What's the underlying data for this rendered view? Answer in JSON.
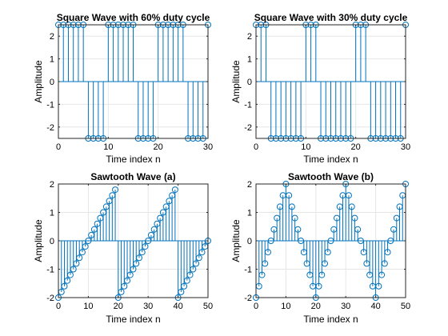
{
  "chart_data": [
    {
      "type": "stem",
      "title": "Square Wave with 60% duty cycle",
      "xlabel": "Time index n",
      "ylabel": "Amplitude",
      "xlim": [
        0,
        30
      ],
      "ylim": [
        -2.5,
        2.5
      ],
      "xticks": [
        0,
        10,
        20,
        30
      ],
      "yticks": [
        -2,
        -1,
        0,
        1,
        2
      ],
      "grid": true,
      "x": [
        0,
        1,
        2,
        3,
        4,
        5,
        6,
        7,
        8,
        9,
        10,
        11,
        12,
        13,
        14,
        15,
        16,
        17,
        18,
        19,
        20,
        21,
        22,
        23,
        24,
        25,
        26,
        27,
        28,
        29,
        30
      ],
      "y": [
        2.5,
        2.5,
        2.5,
        2.5,
        2.5,
        2.5,
        -2.5,
        -2.5,
        -2.5,
        -2.5,
        2.5,
        2.5,
        2.5,
        2.5,
        2.5,
        2.5,
        -2.5,
        -2.5,
        -2.5,
        -2.5,
        2.5,
        2.5,
        2.5,
        2.5,
        2.5,
        2.5,
        -2.5,
        -2.5,
        -2.5,
        -2.5,
        2.5
      ]
    },
    {
      "type": "stem",
      "title": "Square Wave with 30% duty cycle",
      "xlabel": "Time index n",
      "ylabel": "Amplitude",
      "xlim": [
        0,
        30
      ],
      "ylim": [
        -2.5,
        2.5
      ],
      "xticks": [
        0,
        10,
        20,
        30
      ],
      "yticks": [
        -2,
        -1,
        0,
        1,
        2
      ],
      "grid": true,
      "x": [
        0,
        1,
        2,
        3,
        4,
        5,
        6,
        7,
        8,
        9,
        10,
        11,
        12,
        13,
        14,
        15,
        16,
        17,
        18,
        19,
        20,
        21,
        22,
        23,
        24,
        25,
        26,
        27,
        28,
        29,
        30
      ],
      "y": [
        2.5,
        2.5,
        2.5,
        -2.5,
        -2.5,
        -2.5,
        -2.5,
        -2.5,
        -2.5,
        -2.5,
        2.5,
        2.5,
        2.5,
        -2.5,
        -2.5,
        -2.5,
        -2.5,
        -2.5,
        -2.5,
        -2.5,
        2.5,
        2.5,
        2.5,
        -2.5,
        -2.5,
        -2.5,
        -2.5,
        -2.5,
        -2.5,
        -2.5,
        2.5
      ]
    },
    {
      "type": "stem",
      "title": "Sawtooth Wave (a)",
      "xlabel": "Time index n",
      "ylabel": "Amplitude",
      "xlim": [
        0,
        50
      ],
      "ylim": [
        -2,
        2
      ],
      "xticks": [
        0,
        10,
        20,
        30,
        40,
        50
      ],
      "yticks": [
        -2,
        -1,
        0,
        1,
        2
      ],
      "grid": true,
      "x": [
        0,
        1,
        2,
        3,
        4,
        5,
        6,
        7,
        8,
        9,
        10,
        11,
        12,
        13,
        14,
        15,
        16,
        17,
        18,
        19,
        20,
        21,
        22,
        23,
        24,
        25,
        26,
        27,
        28,
        29,
        30,
        31,
        32,
        33,
        34,
        35,
        36,
        37,
        38,
        39,
        40,
        41,
        42,
        43,
        44,
        45,
        46,
        47,
        48,
        49,
        50
      ],
      "y": [
        -2,
        -1.8,
        -1.6,
        -1.4,
        -1.2,
        -1,
        -0.8,
        -0.6,
        -0.4,
        -0.2,
        0,
        0.2,
        0.4,
        0.6,
        0.8,
        1,
        1.2,
        1.4,
        1.6,
        1.8,
        -2,
        -1.8,
        -1.6,
        -1.4,
        -1.2,
        -1,
        -0.8,
        -0.6,
        -0.4,
        -0.2,
        0,
        0.2,
        0.4,
        0.6,
        0.8,
        1,
        1.2,
        1.4,
        1.6,
        1.8,
        -2,
        -1.8,
        -1.6,
        -1.4,
        -1.2,
        -1,
        -0.8,
        -0.6,
        -0.4,
        -0.2,
        0
      ]
    },
    {
      "type": "stem",
      "title": "Sawtooth Wave (b)",
      "xlabel": "Time index n",
      "ylabel": "Amplitude",
      "xlim": [
        0,
        50
      ],
      "ylim": [
        -2,
        2
      ],
      "xticks": [
        0,
        10,
        20,
        30,
        40,
        50
      ],
      "yticks": [
        -2,
        -1,
        0,
        1,
        2
      ],
      "grid": true,
      "x": [
        0,
        1,
        2,
        3,
        4,
        5,
        6,
        7,
        8,
        9,
        10,
        11,
        12,
        13,
        14,
        15,
        16,
        17,
        18,
        19,
        20,
        21,
        22,
        23,
        24,
        25,
        26,
        27,
        28,
        29,
        30,
        31,
        32,
        33,
        34,
        35,
        36,
        37,
        38,
        39,
        40,
        41,
        42,
        43,
        44,
        45,
        46,
        47,
        48,
        49,
        50
      ],
      "y": [
        -2,
        -1.6,
        -1.2,
        -0.8,
        -0.4,
        0,
        0.4,
        0.8,
        1.2,
        1.6,
        2,
        1.6,
        1.2,
        0.8,
        0.4,
        0,
        -0.4,
        -0.8,
        -1.2,
        -1.6,
        -2,
        -1.6,
        -1.2,
        -0.8,
        -0.4,
        0,
        0.4,
        0.8,
        1.2,
        1.6,
        2,
        1.6,
        1.2,
        0.8,
        0.4,
        0,
        -0.4,
        -0.8,
        -1.2,
        -1.6,
        -2,
        -1.6,
        -1.2,
        -0.8,
        -0.4,
        0,
        0.4,
        0.8,
        1.2,
        1.6,
        2
      ]
    }
  ],
  "colors": {
    "stem": "#0072BD",
    "grid": "#e6e6e6",
    "axis": "#262626"
  }
}
